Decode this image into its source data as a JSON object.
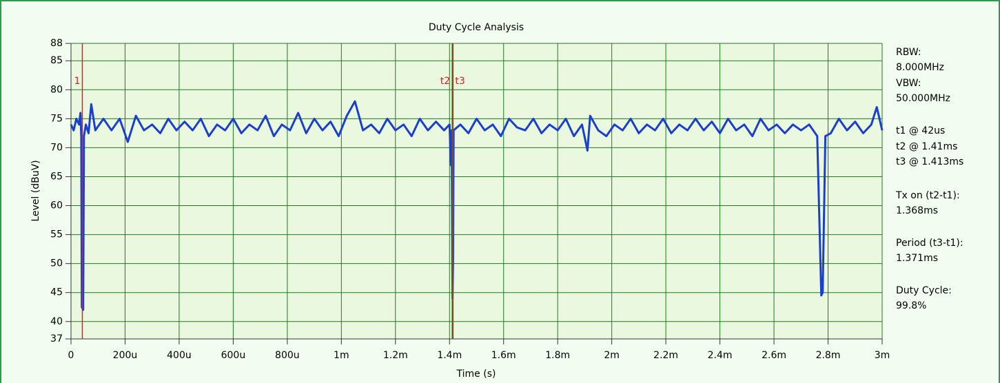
{
  "chart_data": {
    "type": "line",
    "title": "Duty Cycle Analysis",
    "x_label": "Time (s)",
    "y_label": "Level (dBuV)",
    "color": "#1a3fd0",
    "grid": true,
    "xlim": [
      0,
      0.003
    ],
    "ylim": [
      37,
      88
    ],
    "xticks": [
      0,
      {
        "value": 0.0002,
        "label": "200u"
      },
      {
        "value": 0.0004,
        "label": "400u"
      },
      {
        "value": 0.0006,
        "label": "600u"
      },
      {
        "value": 0.0008,
        "label": "800u"
      },
      {
        "value": 0.001,
        "label": "1m"
      },
      {
        "value": 0.0012,
        "label": "1.2m"
      },
      {
        "value": 0.0014,
        "label": "1.4m"
      },
      {
        "value": 0.0016,
        "label": "1.6m"
      },
      {
        "value": 0.0018,
        "label": "1.8m"
      },
      {
        "value": 0.002,
        "label": "2m"
      },
      {
        "value": 0.0022,
        "label": "2.2m"
      },
      {
        "value": 0.0024,
        "label": "2.4m"
      },
      {
        "value": 0.0026,
        "label": "2.6m"
      },
      {
        "value": 0.0028,
        "label": "2.8m"
      },
      {
        "value": 0.003,
        "label": "3m"
      }
    ],
    "yticks": [
      37,
      40,
      45,
      50,
      55,
      60,
      65,
      70,
      75,
      80,
      85,
      88
    ],
    "x": [
      0,
      1e-05,
      2e-05,
      3e-05,
      3.5e-05,
      3.8e-05,
      4e-05,
      4.5e-05,
      4.8e-05,
      5.5e-05,
      6.5e-05,
      7.5e-05,
      9e-05,
      0.00012,
      0.00015,
      0.00018,
      0.00021,
      0.00024,
      0.00027,
      0.0003,
      0.00033,
      0.00036,
      0.00039,
      0.00042,
      0.00045,
      0.00048,
      0.00051,
      0.00054,
      0.00057,
      0.0006,
      0.00063,
      0.00066,
      0.00069,
      0.00072,
      0.00075,
      0.00078,
      0.00081,
      0.00084,
      0.00087,
      0.0009,
      0.00093,
      0.00096,
      0.00099,
      0.00102,
      0.00105,
      0.00108,
      0.00111,
      0.00114,
      0.00117,
      0.0012,
      0.00123,
      0.00126,
      0.00129,
      0.00132,
      0.00135,
      0.00138,
      0.0014,
      0.001405,
      0.001408,
      0.001411,
      0.001413,
      0.001415,
      0.00144,
      0.00147,
      0.0015,
      0.00153,
      0.00156,
      0.00159,
      0.00162,
      0.00165,
      0.00168,
      0.00171,
      0.00174,
      0.00177,
      0.0018,
      0.00183,
      0.00186,
      0.00189,
      0.00191,
      0.00192,
      0.00195,
      0.00198,
      0.00201,
      0.00204,
      0.00207,
      0.0021,
      0.00213,
      0.00216,
      0.00219,
      0.00222,
      0.00225,
      0.00228,
      0.00231,
      0.00234,
      0.00237,
      0.0024,
      0.00243,
      0.00246,
      0.00249,
      0.00252,
      0.00255,
      0.00258,
      0.00261,
      0.00264,
      0.00267,
      0.0027,
      0.00273,
      0.00276,
      0.002775,
      0.00278,
      0.00279,
      0.00281,
      0.00284,
      0.00287,
      0.0029,
      0.00293,
      0.00296,
      0.00298,
      0.003
    ],
    "values": [
      74,
      73,
      75,
      74,
      76,
      72,
      42.5,
      42,
      72,
      74,
      72.5,
      77.5,
      73,
      75,
      73,
      75,
      71,
      75.5,
      73,
      74,
      72.5,
      75,
      73,
      74.5,
      73,
      75,
      72,
      74,
      73,
      75,
      72.5,
      74,
      73,
      75.5,
      72,
      74,
      73,
      76,
      72.5,
      75,
      73,
      74.5,
      72,
      75.5,
      78,
      73,
      74,
      72.5,
      75,
      73,
      74,
      72,
      75,
      73,
      74.5,
      73,
      74,
      67,
      73,
      44,
      50,
      73,
      74,
      72.5,
      75,
      73,
      74,
      72,
      75,
      73.5,
      73,
      75,
      72.5,
      74,
      73,
      75,
      72,
      74,
      69.5,
      75.5,
      73,
      72,
      74,
      73,
      75,
      72.5,
      74,
      73,
      75,
      72.5,
      74,
      73,
      75,
      73,
      74.5,
      72.5,
      75,
      73,
      74,
      72,
      75,
      73,
      74,
      72.5,
      74,
      73,
      74,
      72,
      44.5,
      45,
      72,
      72.5,
      75,
      73,
      74.5,
      72.5,
      74,
      77,
      73
    ],
    "markers": [
      {
        "label": "1",
        "x": 4.2e-05,
        "color": "#e02020"
      },
      {
        "label": "t2",
        "x": 0.00141,
        "color": "#1f7a1f"
      },
      {
        "label": "t3",
        "x": 0.001413,
        "color": "#e02020"
      }
    ],
    "annotations": [
      "RBW:",
      "8.000MHz",
      "VBW:",
      "50.000MHz",
      "t1 @ 42us",
      "t2 @ 1.41ms",
      "t3 @ 1.413ms",
      "Tx on (t2-t1):",
      "1.368ms",
      "Period (t3-t1):",
      "1.371ms",
      "Duty Cycle:",
      "99.8%"
    ]
  }
}
